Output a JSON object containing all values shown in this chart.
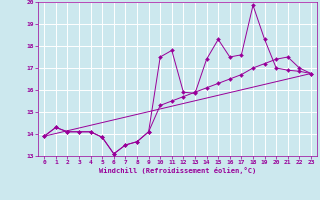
{
  "xlabel": "Windchill (Refroidissement éolien,°C)",
  "bg_color": "#cce8ee",
  "line_color": "#990099",
  "grid_color": "#ffffff",
  "xlim": [
    -0.5,
    23.5
  ],
  "ylim": [
    13,
    20
  ],
  "xticks": [
    0,
    1,
    2,
    3,
    4,
    5,
    6,
    7,
    8,
    9,
    10,
    11,
    12,
    13,
    14,
    15,
    16,
    17,
    18,
    19,
    20,
    21,
    22,
    23
  ],
  "yticks": [
    13,
    14,
    15,
    16,
    17,
    18,
    19,
    20
  ],
  "series1_x": [
    0,
    1,
    2,
    3,
    4,
    5,
    6,
    7,
    8,
    9,
    10,
    11,
    12,
    13,
    14,
    15,
    16,
    17,
    18,
    19,
    20,
    21,
    22,
    23
  ],
  "series1_y": [
    13.9,
    14.3,
    14.1,
    14.1,
    14.1,
    13.85,
    13.1,
    13.5,
    13.65,
    14.1,
    17.5,
    17.8,
    15.9,
    15.85,
    17.4,
    18.3,
    17.5,
    17.6,
    19.85,
    18.3,
    17.0,
    16.9,
    16.85,
    16.75
  ],
  "series2_x": [
    0,
    1,
    2,
    3,
    4,
    5,
    6,
    7,
    8,
    9,
    10,
    11,
    12,
    13,
    14,
    15,
    16,
    17,
    18,
    19,
    20,
    21,
    22,
    23
  ],
  "series2_y": [
    13.9,
    14.3,
    14.1,
    14.1,
    14.1,
    13.85,
    13.1,
    13.5,
    13.65,
    14.1,
    15.3,
    15.5,
    15.7,
    15.9,
    16.1,
    16.3,
    16.5,
    16.7,
    17.0,
    17.2,
    17.4,
    17.5,
    17.0,
    16.75
  ],
  "series3_x": [
    0,
    23
  ],
  "series3_y": [
    13.9,
    16.75
  ]
}
